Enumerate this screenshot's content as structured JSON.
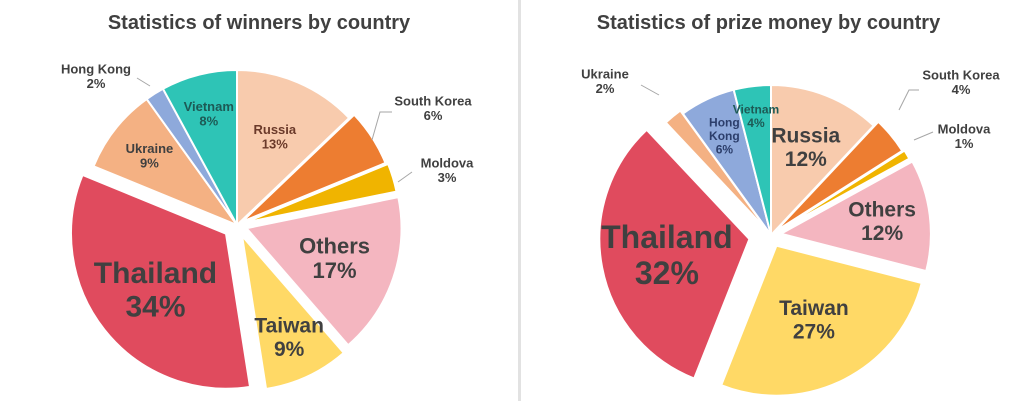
{
  "chart_data": [
    {
      "type": "pie",
      "title": "Statistics of winners by country",
      "unit": "%",
      "slices": [
        {
          "label": "Russia",
          "value": 13,
          "color": "#F8CBAD"
        },
        {
          "label": "South Korea",
          "value": 6,
          "color": "#ED7D31"
        },
        {
          "label": "Moldova",
          "value": 3,
          "color": "#F0B400"
        },
        {
          "label": "Others",
          "value": 17,
          "color": "#F4B6C0"
        },
        {
          "label": "Taiwan",
          "value": 9,
          "color": "#FFD966"
        },
        {
          "label": "Thailand",
          "value": 34,
          "color": "#E04B5E"
        },
        {
          "label": "Ukraine",
          "value": 9,
          "color": "#F4B183"
        },
        {
          "label": "Hong Kong",
          "value": 2,
          "color": "#8EA9DB"
        },
        {
          "label": "Vietnam",
          "value": 8,
          "color": "#2EC4B6"
        }
      ]
    },
    {
      "type": "pie",
      "title": "Statistics of prize money by country",
      "unit": "%",
      "slices": [
        {
          "label": "Russia",
          "value": 12,
          "color": "#F8CBAD"
        },
        {
          "label": "South Korea",
          "value": 4,
          "color": "#ED7D31"
        },
        {
          "label": "Moldova",
          "value": 1,
          "color": "#F0B400"
        },
        {
          "label": "Others",
          "value": 12,
          "color": "#F4B6C0"
        },
        {
          "label": "Taiwan",
          "value": 27,
          "color": "#FFD966"
        },
        {
          "label": "Thailand",
          "value": 32,
          "color": "#E04B5E"
        },
        {
          "label": "Ukraine",
          "value": 2,
          "color": "#F4B183"
        },
        {
          "label": "Hong Kong",
          "value": 6,
          "color": "#8EA9DB"
        },
        {
          "label": "Vietnam",
          "value": 4,
          "color": "#2EC4B6"
        }
      ]
    }
  ]
}
